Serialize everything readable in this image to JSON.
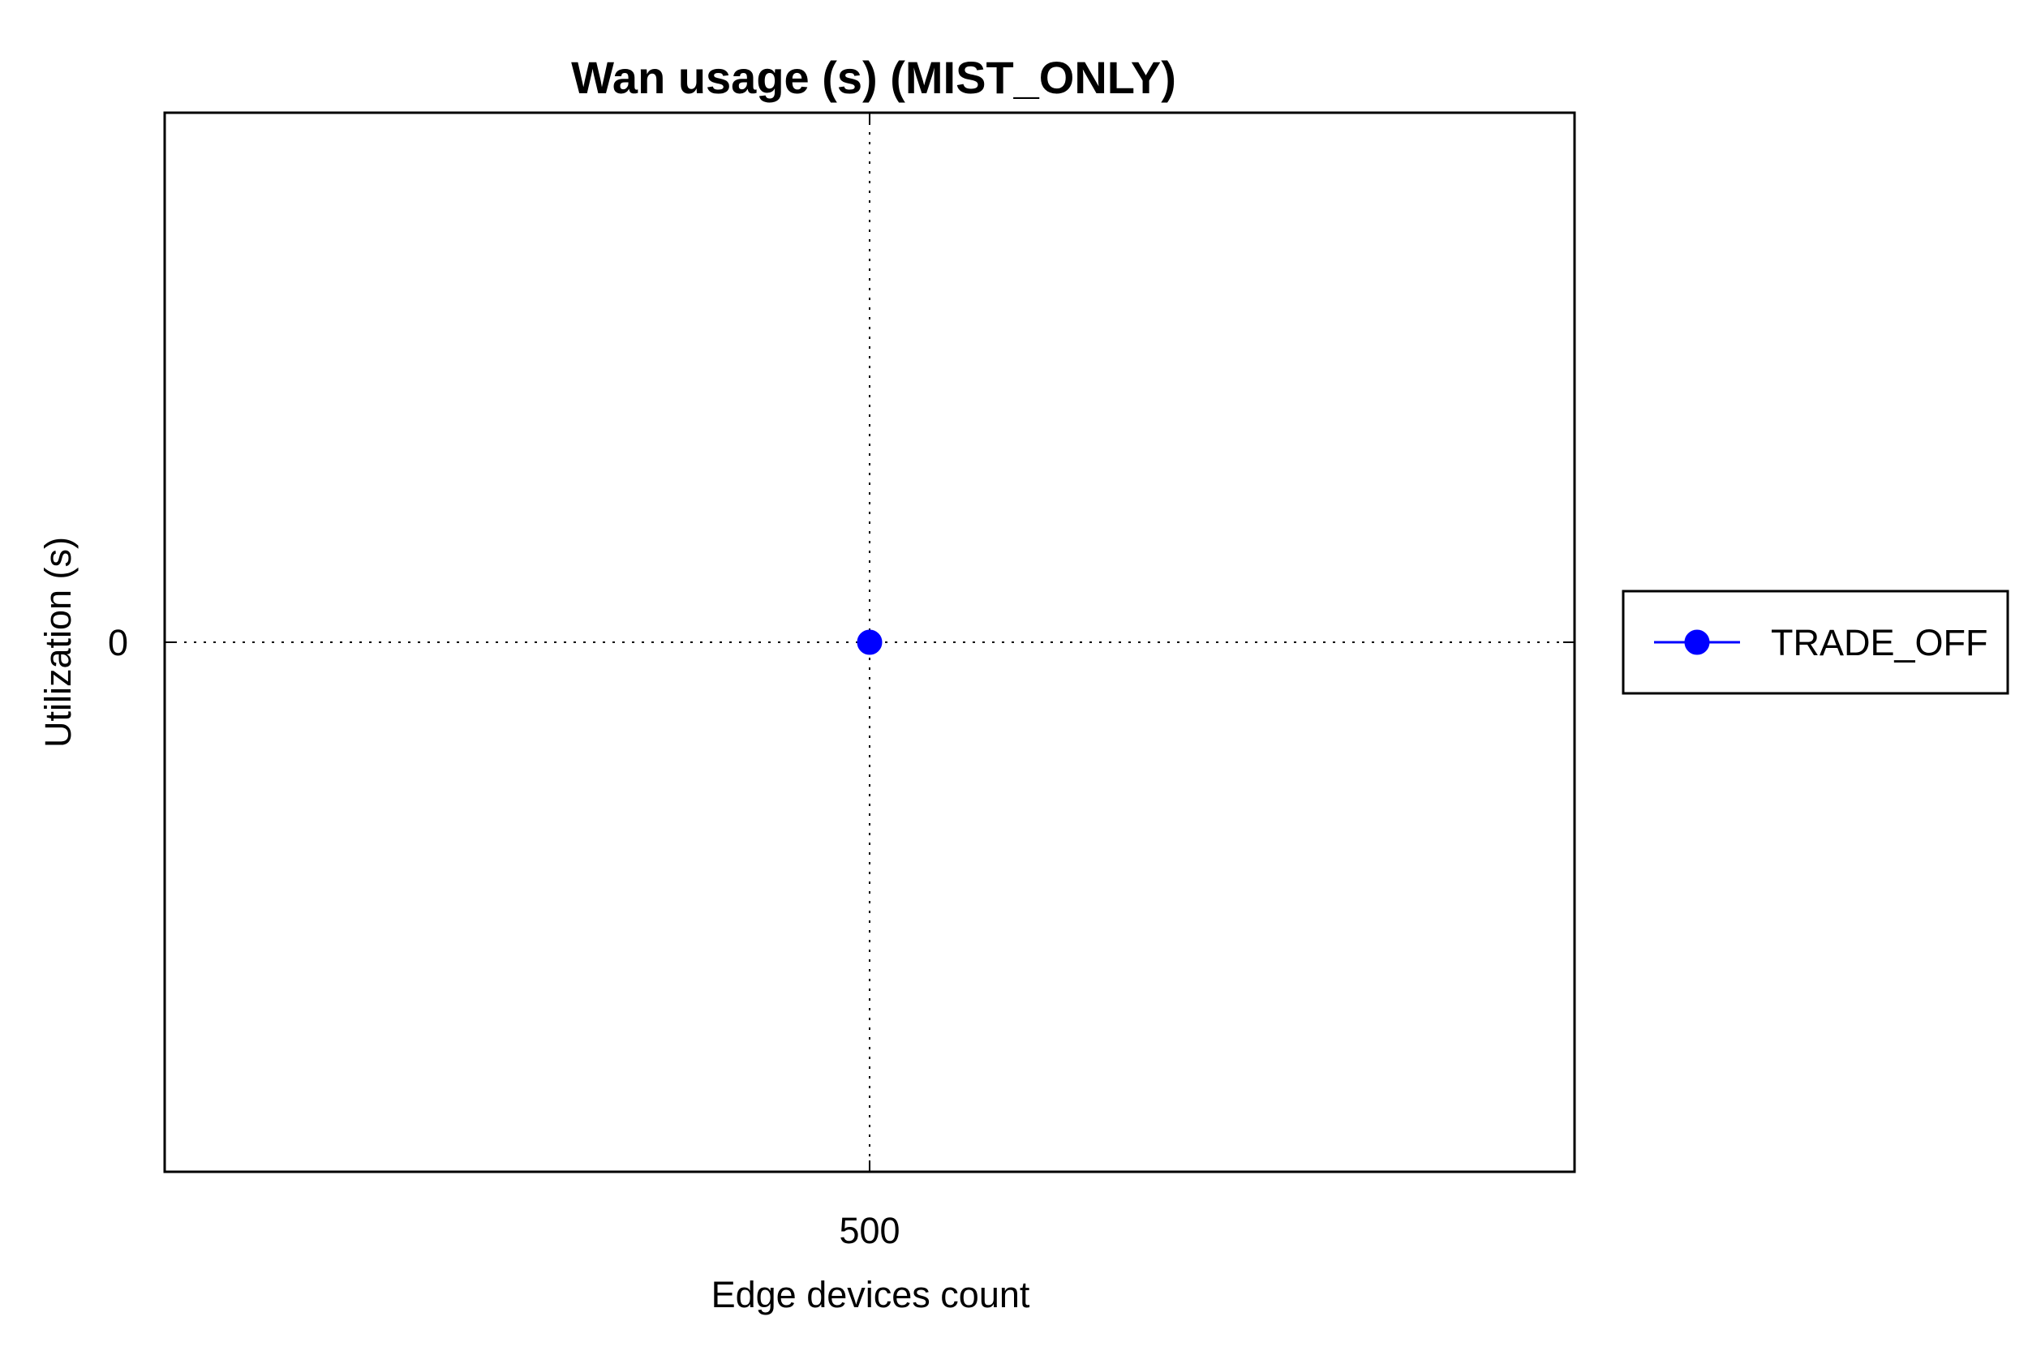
{
  "chart_data": {
    "type": "line",
    "title": "Wan usage (s) (MIST_ONLY)",
    "xlabel": "Edge devices count",
    "ylabel": "Utilization (s)",
    "x_ticks": [
      "500"
    ],
    "y_ticks": [
      "0"
    ],
    "xlim": [
      0,
      1000
    ],
    "ylim": [
      -1,
      1
    ],
    "grid": true,
    "legend_position": "right",
    "series": [
      {
        "name": "TRADE_OFF",
        "color": "#0000ff",
        "marker": "circle",
        "x": [
          500
        ],
        "y": [
          0
        ]
      }
    ]
  }
}
